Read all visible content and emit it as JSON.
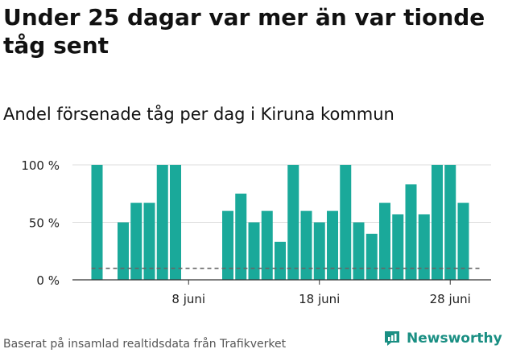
{
  "headline": "Under 25 dagar var mer än var tionde tåg sent",
  "subtitle": "Andel försenade tåg per dag i Kiruna kommun",
  "footer": {
    "source": "Baserat på insamlad realtidsdata från Trafikverket",
    "brand": "Newsworthy"
  },
  "colors": {
    "bar": "#1aa99a",
    "brand": "#1a8f83",
    "threshold": "#666666",
    "grid": "#dddddd"
  },
  "chart_data": {
    "type": "bar",
    "title": "Andel försenade tåg per dag i Kiruna kommun",
    "xlabel": "",
    "ylabel": "",
    "ylim": [
      0,
      100
    ],
    "yticks": [
      0,
      50,
      100
    ],
    "ytick_labels": [
      "0 %",
      "50 %",
      "100 %"
    ],
    "xtick_labels": [
      {
        "day": 8,
        "label": "8 juni"
      },
      {
        "day": 18,
        "label": "18 juni"
      },
      {
        "day": 28,
        "label": "28 juni"
      }
    ],
    "categories": [
      1,
      2,
      3,
      4,
      5,
      6,
      7,
      8,
      9,
      10,
      11,
      12,
      13,
      14,
      15,
      16,
      17,
      18,
      19,
      20,
      21,
      22,
      23,
      24,
      25,
      26,
      27,
      28,
      29,
      30
    ],
    "values": [
      100,
      0,
      50,
      67,
      67,
      100,
      100,
      0,
      0,
      0,
      60,
      75,
      50,
      60,
      33,
      100,
      60,
      50,
      60,
      100,
      50,
      40,
      67,
      57,
      83,
      57,
      100,
      100,
      67,
      null
    ],
    "threshold": 10,
    "grid": true,
    "legend": "none"
  }
}
